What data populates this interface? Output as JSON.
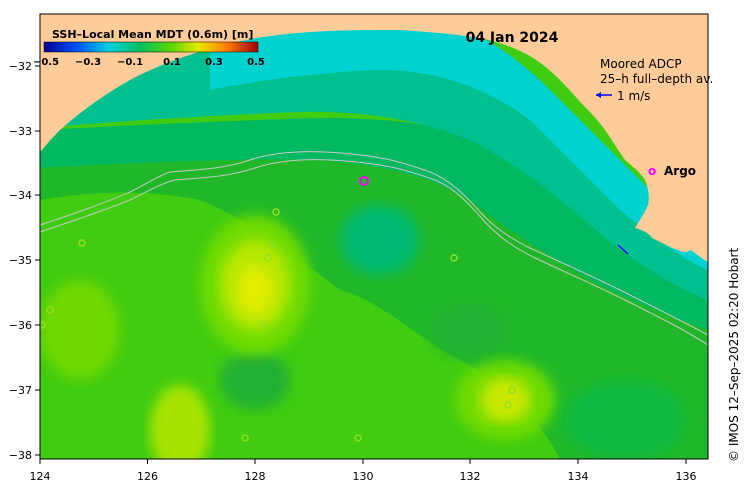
{
  "map": {
    "date": "04 Jan 2024",
    "colorbar": {
      "title": "SSH–Local Mean MDT (0.6m) [m]",
      "ticks": [
        "−0.5",
        "−0.3",
        "−0.1",
        "0.1",
        "0.3",
        "0.5"
      ]
    },
    "adcp_legend": {
      "line1": "Moored ADCP",
      "line2": "25–h full–depth av.",
      "scale_label": "1 m/s"
    },
    "argo_legend": {
      "symbol": "o",
      "label": "Argo"
    },
    "credit": "© IMOS 12–Sep–2025 02:20 Hobart",
    "x_ticks": [
      "124",
      "126",
      "128",
      "130",
      "132",
      "134",
      "136"
    ],
    "y_ticks": [
      "−32",
      "−33",
      "−34",
      "−35",
      "−36",
      "−37",
      "−38"
    ],
    "colors": {
      "land": "#ffcc99",
      "shelf_cyan": "#00d0d8",
      "teal": "#00c0a0",
      "green": "#00b450",
      "bright_green": "#40d000",
      "yellow_green": "#a0e000",
      "yellow": "#e0e800",
      "argo": "#ff00ff",
      "adcp_arrow": "#0000ff"
    }
  }
}
